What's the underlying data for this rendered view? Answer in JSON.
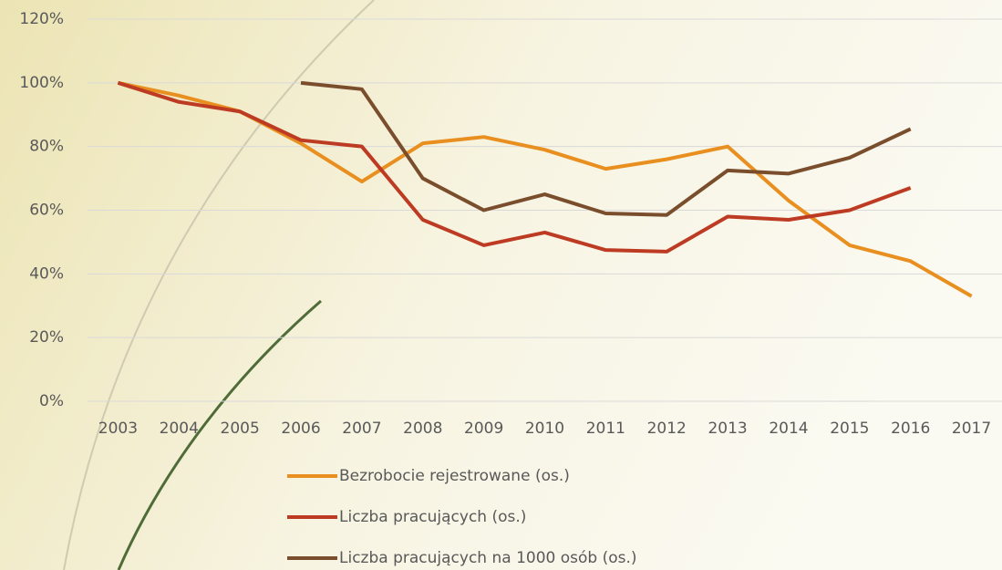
{
  "chart_data": {
    "type": "line",
    "categories": [
      "2003",
      "2004",
      "2005",
      "2006",
      "2007",
      "2008",
      "2009",
      "2010",
      "2011",
      "2012",
      "2013",
      "2014",
      "2015",
      "2016",
      "2017"
    ],
    "series": [
      {
        "name": "Bezrobocie rejestrowane (os.)",
        "color": "#e88f1f",
        "values": [
          100,
          96,
          91,
          81,
          69,
          81,
          83,
          79,
          73,
          76,
          80,
          63,
          49,
          44,
          33
        ]
      },
      {
        "name": "Liczba pracujących (os.)",
        "color": "#bd3b22",
        "values": [
          100,
          94,
          91,
          82,
          80,
          57,
          49,
          53,
          47.5,
          47,
          58,
          57,
          60,
          67,
          null
        ]
      },
      {
        "name": "Liczba pracujących na 1000 osób (os.)",
        "color": "#7a4e2d",
        "values": [
          null,
          null,
          null,
          100,
          98,
          70,
          60,
          65,
          59,
          58.5,
          72.5,
          71.5,
          76.5,
          85.5,
          null
        ]
      }
    ],
    "ylim": [
      0,
      120
    ],
    "yticks": [
      {
        "value": 0,
        "label": "0%"
      },
      {
        "value": 20,
        "label": "20%"
      },
      {
        "value": 40,
        "label": "40%"
      },
      {
        "value": 60,
        "label": "60%"
      },
      {
        "value": 80,
        "label": "80%"
      },
      {
        "value": 100,
        "label": "100%"
      },
      {
        "value": 120,
        "label": "120%"
      }
    ],
    "grid": true,
    "legend": "bottom"
  }
}
